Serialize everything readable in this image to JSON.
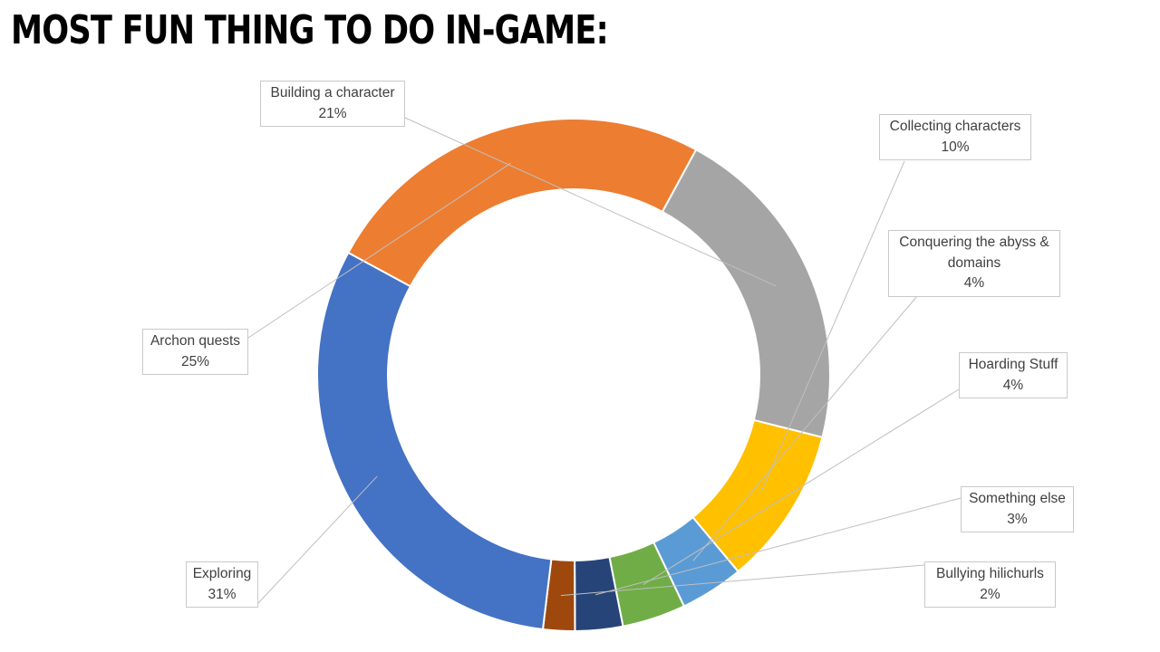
{
  "title": "MOST FUN THING TO DO IN-GAME:",
  "chart_data": {
    "type": "pie",
    "title": "MOST FUN THING TO DO IN-GAME:",
    "unit": "%",
    "slices": [
      {
        "label": "Building a character",
        "value": 21,
        "display": "21%",
        "color": "#A5A5A5"
      },
      {
        "label": "Collecting characters",
        "value": 10,
        "display": "10%",
        "color": "#FFC000"
      },
      {
        "label": "Conquering the abyss & domains",
        "value": 4,
        "display": "4%",
        "color": "#5B9BD5"
      },
      {
        "label": "Hoarding Stuff",
        "value": 4,
        "display": "4%",
        "color": "#70AD47"
      },
      {
        "label": "Something else",
        "value": 3,
        "display": "3%",
        "color": "#264478"
      },
      {
        "label": "Bullying hilichurls",
        "value": 2,
        "display": "2%",
        "color": "#9E480E"
      },
      {
        "label": "Exploring",
        "value": 31,
        "display": "31%",
        "color": "#4472C4"
      },
      {
        "label": "Archon quests",
        "value": 25,
        "display": "25%",
        "color": "#ED7D31"
      }
    ]
  }
}
